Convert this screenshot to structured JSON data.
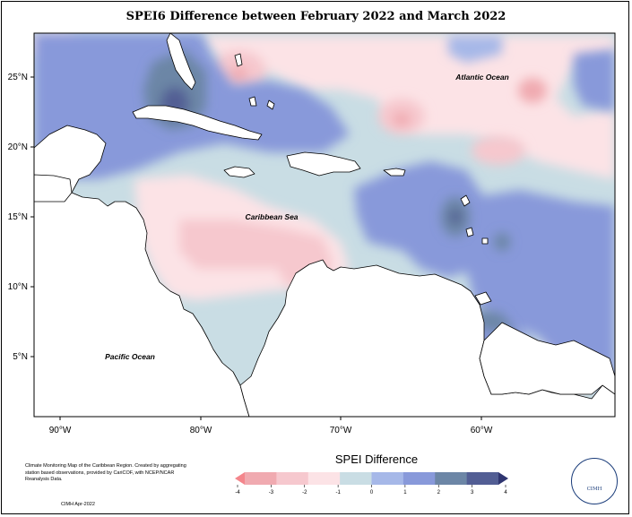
{
  "title": "SPEI6 Difference between February 2022 and March 2022",
  "map": {
    "lat_ticks": [
      "25°N",
      "20°N",
      "15°N",
      "10°N",
      "5°N"
    ],
    "lon_ticks": [
      "90°W",
      "80°W",
      "70°W",
      "60°W"
    ],
    "ocean_labels": {
      "atlantic": "Atlantic Ocean",
      "caribbean": "Caribbean Sea",
      "pacific": "Pacific Ocean"
    }
  },
  "legend": {
    "title": "SPEI Difference",
    "ticks": [
      "-4",
      "-3",
      "-2",
      "-1",
      "0",
      "1",
      "2",
      "3",
      "4"
    ],
    "colors": [
      "#f4868c",
      "#f0aab0",
      "#f6c8ce",
      "#fce3e6",
      "#c9dde4",
      "#a6b8e8",
      "#8899da",
      "#6c86a6",
      "#525e94",
      "#2f3570"
    ]
  },
  "credit": {
    "text": "Climate Monitoring Map of the Caribbean Region. Created by aggregating station based observations, provided by CariCOF, with NCEP/NCAR Reanalysis Data.",
    "date": "CIMH Apr-2022"
  },
  "logo": {
    "text": "CIMH"
  },
  "colors": {
    "pink": "#fce3e6",
    "pink_mid": "#f6c8ce",
    "red_core": "#f0aab0",
    "light_blue": "#c9dde4",
    "blue": "#8899da",
    "slate": "#6c86a6",
    "navy": "#525e94",
    "land": "#ffffff"
  }
}
